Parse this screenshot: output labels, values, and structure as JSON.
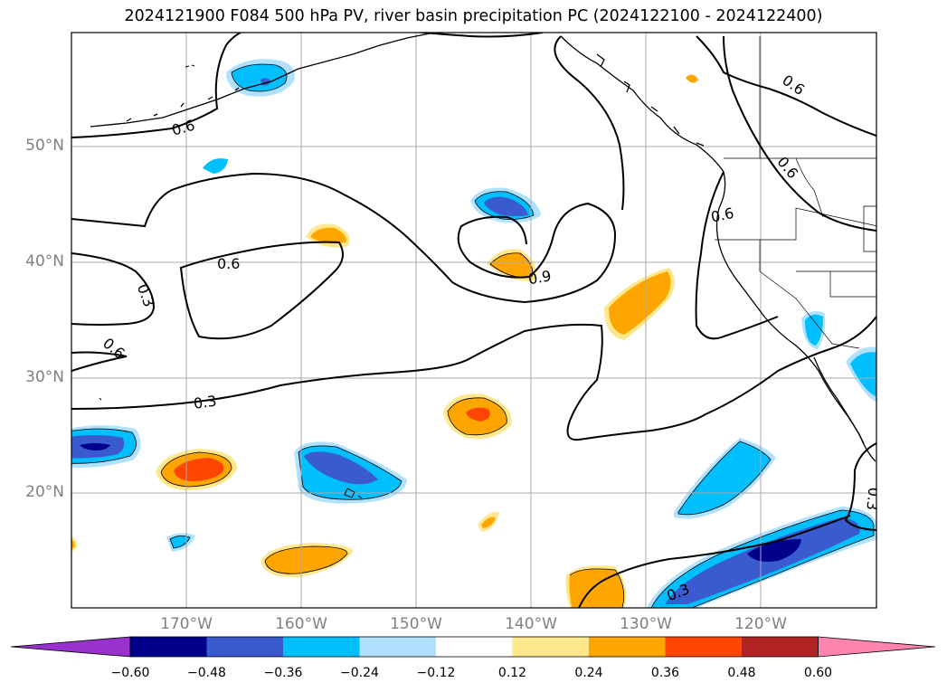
{
  "title": "2024121900 F084 500 hPa PV, river basin precipitation PC (2024122100 - 2024122400)",
  "lat_labels": [
    "50°N",
    "40°N",
    "30°N",
    "20°N"
  ],
  "lon_labels": [
    "170°W",
    "160°W",
    "150°W",
    "140°W",
    "130°W",
    "120°W"
  ],
  "contour_labels": [
    "0.6",
    "0.6",
    "0.3",
    "0.6",
    "0.3",
    "0.9",
    "0.6",
    "0.6",
    "0.6",
    "0.3",
    "0.3"
  ],
  "colorbar": {
    "ticks": [
      "−0.60",
      "−0.48",
      "−0.36",
      "−0.24",
      "−0.12",
      "0.12",
      "0.24",
      "0.36",
      "0.48",
      "0.60"
    ],
    "colors": [
      "#9932cc",
      "#00008b",
      "#3a5bd0",
      "#00bfff",
      "#b0e2ff",
      "#ffffff",
      "#ffe88c",
      "#ffa500",
      "#ff4500",
      "#b22222",
      "#ff85b0"
    ]
  },
  "colors": {
    "neg_strong": "#00008b",
    "neg_mid": "#3a5bd0",
    "neg_light": "#00bfff",
    "neg_faint": "#b0e2ff",
    "pos_faint": "#ffe88c",
    "pos_mid": "#ffa500",
    "pos_strong": "#ff4500"
  }
}
